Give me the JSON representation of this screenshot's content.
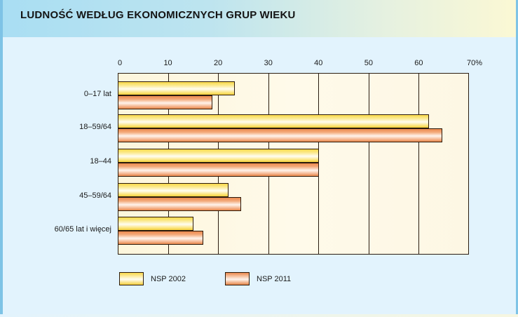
{
  "header": {
    "title": "LUDNOŚĆ WEDŁUG EKONOMICZNYCH GRUP WIEKU"
  },
  "axis": {
    "ticks": [
      "0",
      "10",
      "20",
      "30",
      "40",
      "50",
      "60",
      "70%"
    ]
  },
  "legend": [
    {
      "label": "NSP 2002",
      "color": "#f9d94a"
    },
    {
      "label": "NSP 2011",
      "color": "#ec8a4e"
    }
  ],
  "chart_data": {
    "type": "bar",
    "orientation": "horizontal",
    "title": "LUDNOŚĆ WEDŁUG EKONOMICZNYCH GRUP WIEKU",
    "xlabel": "%",
    "ylabel": "",
    "xlim": [
      0,
      70
    ],
    "xticks": [
      0,
      10,
      20,
      30,
      40,
      50,
      60,
      70
    ],
    "grid": true,
    "legend_position": "bottom",
    "categories": [
      "0–17 lat",
      "18–59/64",
      "18–44",
      "45–59/64",
      "60/65 lat i więcej"
    ],
    "series": [
      {
        "name": "NSP 2002",
        "values": [
          23.2,
          61.9,
          39.9,
          21.9,
          15.0
        ]
      },
      {
        "name": "NSP 2011",
        "values": [
          18.7,
          64.5,
          40.0,
          24.5,
          16.9
        ]
      }
    ]
  }
}
